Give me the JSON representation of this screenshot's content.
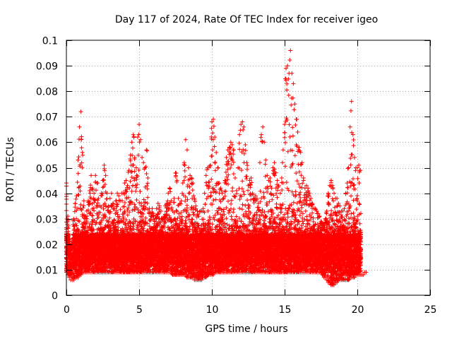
{
  "chart_data": {
    "type": "scatter",
    "title": "Day 117 of 2024, Rate Of TEC Index for receiver igeo",
    "xlabel": "GPS time / hours",
    "ylabel": "ROTI / TECUs",
    "xlim": [
      0,
      25
    ],
    "ylim": [
      0,
      0.1
    ],
    "x_ticks": [
      0,
      5,
      10,
      15,
      20,
      25
    ],
    "x_tick_labels": [
      "0",
      "5",
      "10",
      "15",
      "20",
      "25"
    ],
    "y_ticks": [
      0,
      0.01,
      0.02,
      0.03,
      0.04,
      0.05,
      0.06,
      0.07,
      0.08,
      0.09,
      0.1
    ],
    "y_tick_labels": [
      "0",
      "0.01",
      "0.02",
      "0.03",
      "0.04",
      "0.05",
      "0.06",
      "0.07",
      "0.08",
      "0.09",
      "0.1"
    ],
    "grid": true,
    "marker": "+",
    "marker_color": "#ff0000",
    "data_x_range": [
      0,
      21
    ],
    "series": [
      {
        "name": "ROTI",
        "x": [
          0.0,
          0.1,
          0.2,
          0.3,
          0.4,
          0.5,
          0.6,
          0.7,
          0.8,
          0.9,
          1.0,
          1.1,
          1.2,
          1.3,
          1.4,
          1.5,
          1.6,
          1.7,
          1.8,
          1.9,
          2.0,
          2.1,
          2.2,
          2.3,
          2.4,
          2.5,
          2.6,
          2.7,
          2.8,
          2.9,
          3.0,
          3.1,
          3.2,
          3.3,
          3.4,
          3.5,
          3.6,
          3.7,
          3.8,
          3.9,
          4.0,
          4.1,
          4.2,
          4.3,
          4.4,
          4.5,
          4.6,
          4.7,
          4.8,
          4.9,
          5.0,
          5.1,
          5.2,
          5.3,
          5.4,
          5.5,
          5.6,
          5.7,
          5.8,
          5.9,
          6.0,
          6.1,
          6.2,
          6.3,
          6.4,
          6.5,
          6.6,
          6.7,
          6.8,
          6.9,
          7.0,
          7.1,
          7.2,
          7.3,
          7.4,
          7.5,
          7.6,
          7.7,
          7.8,
          7.9,
          8.0,
          8.1,
          8.2,
          8.3,
          8.4,
          8.5,
          8.6,
          8.7,
          8.8,
          8.9,
          9.0,
          9.1,
          9.2,
          9.3,
          9.4,
          9.5,
          9.6,
          9.7,
          9.8,
          9.9,
          10.0,
          10.1,
          10.2,
          10.3,
          10.4,
          10.5,
          10.6,
          10.7,
          10.8,
          10.9,
          11.0,
          11.1,
          11.2,
          11.3,
          11.4,
          11.5,
          11.6,
          11.7,
          11.8,
          11.9,
          12.0,
          12.1,
          12.2,
          12.3,
          12.4,
          12.5,
          12.6,
          12.7,
          12.8,
          12.9,
          13.0,
          13.1,
          13.2,
          13.3,
          13.4,
          13.5,
          13.6,
          13.7,
          13.8,
          13.9,
          14.0,
          14.1,
          14.2,
          14.3,
          14.4,
          14.5,
          14.6,
          14.7,
          14.8,
          14.9,
          15.0,
          15.1,
          15.2,
          15.3,
          15.4,
          15.5,
          15.6,
          15.7,
          15.8,
          15.9,
          16.0,
          16.1,
          16.2,
          16.3,
          16.4,
          16.5,
          16.6,
          16.7,
          16.8,
          16.9,
          17.0,
          17.1,
          17.2,
          17.3,
          17.4,
          17.5,
          17.6,
          17.7,
          17.8,
          17.9,
          18.0,
          18.1,
          18.2,
          18.3,
          18.4,
          18.5,
          18.6,
          18.7,
          18.8,
          18.9,
          19.0,
          19.1,
          19.2,
          19.3,
          19.4,
          19.5,
          19.6,
          19.7,
          19.8,
          19.9,
          20.0,
          20.1,
          20.2,
          20.3,
          20.4,
          20.5,
          20.6,
          20.7,
          20.8,
          20.9,
          21.0
        ],
        "min": [
          0.009,
          0.008,
          0.007,
          0.006,
          0.006,
          0.006,
          0.007,
          0.007,
          0.007,
          0.008,
          0.008,
          0.009,
          0.009,
          0.009,
          0.009,
          0.009,
          0.009,
          0.009,
          0.009,
          0.009,
          0.009,
          0.009,
          0.009,
          0.009,
          0.009,
          0.009,
          0.009,
          0.009,
          0.009,
          0.009,
          0.009,
          0.009,
          0.009,
          0.009,
          0.009,
          0.009,
          0.009,
          0.009,
          0.009,
          0.009,
          0.009,
          0.009,
          0.009,
          0.009,
          0.009,
          0.009,
          0.009,
          0.009,
          0.009,
          0.009,
          0.009,
          0.009,
          0.009,
          0.009,
          0.009,
          0.009,
          0.009,
          0.009,
          0.009,
          0.009,
          0.009,
          0.009,
          0.009,
          0.009,
          0.009,
          0.009,
          0.009,
          0.009,
          0.009,
          0.009,
          0.009,
          0.009,
          0.009,
          0.008,
          0.008,
          0.008,
          0.008,
          0.008,
          0.008,
          0.008,
          0.008,
          0.008,
          0.008,
          0.007,
          0.007,
          0.007,
          0.007,
          0.007,
          0.006,
          0.006,
          0.006,
          0.006,
          0.006,
          0.006,
          0.007,
          0.007,
          0.007,
          0.008,
          0.008,
          0.008,
          0.008,
          0.008,
          0.009,
          0.009,
          0.009,
          0.009,
          0.009,
          0.009,
          0.009,
          0.009,
          0.009,
          0.009,
          0.009,
          0.009,
          0.009,
          0.009,
          0.009,
          0.009,
          0.009,
          0.009,
          0.009,
          0.009,
          0.009,
          0.009,
          0.009,
          0.009,
          0.009,
          0.009,
          0.009,
          0.009,
          0.009,
          0.009,
          0.009,
          0.009,
          0.009,
          0.009,
          0.009,
          0.009,
          0.009,
          0.009,
          0.009,
          0.009,
          0.009,
          0.009,
          0.009,
          0.009,
          0.009,
          0.009,
          0.009,
          0.009,
          0.009,
          0.009,
          0.009,
          0.009,
          0.009,
          0.009,
          0.009,
          0.009,
          0.009,
          0.009,
          0.009,
          0.009,
          0.009,
          0.009,
          0.009,
          0.009,
          0.009,
          0.009,
          0.009,
          0.009,
          0.009,
          0.009,
          0.009,
          0.009,
          0.009,
          0.009,
          0.008,
          0.007,
          0.007,
          0.006,
          0.005,
          0.005,
          0.004,
          0.004,
          0.004,
          0.005,
          0.005,
          0.006,
          0.006,
          0.006,
          0.006,
          0.006,
          0.006,
          0.006,
          0.006,
          0.007,
          0.007,
          0.007,
          0.007,
          0.008,
          0.008,
          0.008,
          0.008,
          0.008,
          0.008,
          0.009,
          0.009
        ],
        "max": [
          0.044,
          0.031,
          0.022,
          0.018,
          0.02,
          0.03,
          0.036,
          0.039,
          0.053,
          0.066,
          0.072,
          0.056,
          0.037,
          0.031,
          0.033,
          0.037,
          0.041,
          0.047,
          0.042,
          0.04,
          0.047,
          0.044,
          0.038,
          0.035,
          0.04,
          0.045,
          0.051,
          0.047,
          0.04,
          0.035,
          0.038,
          0.04,
          0.036,
          0.034,
          0.037,
          0.04,
          0.039,
          0.037,
          0.04,
          0.04,
          0.044,
          0.045,
          0.043,
          0.049,
          0.055,
          0.06,
          0.063,
          0.054,
          0.05,
          0.062,
          0.067,
          0.061,
          0.054,
          0.052,
          0.05,
          0.057,
          0.046,
          0.034,
          0.031,
          0.034,
          0.031,
          0.03,
          0.034,
          0.036,
          0.035,
          0.033,
          0.03,
          0.031,
          0.035,
          0.036,
          0.04,
          0.042,
          0.037,
          0.033,
          0.038,
          0.048,
          0.045,
          0.038,
          0.036,
          0.037,
          0.044,
          0.052,
          0.061,
          0.057,
          0.05,
          0.047,
          0.046,
          0.044,
          0.038,
          0.035,
          0.033,
          0.031,
          0.033,
          0.033,
          0.034,
          0.04,
          0.047,
          0.05,
          0.05,
          0.051,
          0.068,
          0.069,
          0.062,
          0.056,
          0.05,
          0.044,
          0.042,
          0.04,
          0.038,
          0.045,
          0.054,
          0.057,
          0.058,
          0.06,
          0.059,
          0.057,
          0.046,
          0.041,
          0.05,
          0.063,
          0.067,
          0.068,
          0.066,
          0.059,
          0.052,
          0.043,
          0.045,
          0.046,
          0.04,
          0.038,
          0.039,
          0.038,
          0.036,
          0.052,
          0.063,
          0.066,
          0.06,
          0.053,
          0.047,
          0.045,
          0.046,
          0.042,
          0.05,
          0.052,
          0.048,
          0.045,
          0.043,
          0.04,
          0.046,
          0.057,
          0.067,
          0.089,
          0.09,
          0.087,
          0.096,
          0.087,
          0.083,
          0.075,
          0.069,
          0.064,
          0.058,
          0.056,
          0.052,
          0.046,
          0.042,
          0.043,
          0.042,
          0.04,
          0.038,
          0.036,
          0.034,
          0.034,
          0.033,
          0.032,
          0.031,
          0.029,
          0.028,
          0.028,
          0.03,
          0.033,
          0.04,
          0.043,
          0.045,
          0.043,
          0.04,
          0.038,
          0.038,
          0.036,
          0.035,
          0.033,
          0.033,
          0.034,
          0.04,
          0.044,
          0.05,
          0.066,
          0.076,
          0.063,
          0.054,
          0.05,
          0.05,
          0.051,
          0.049
        ]
      }
    ]
  }
}
